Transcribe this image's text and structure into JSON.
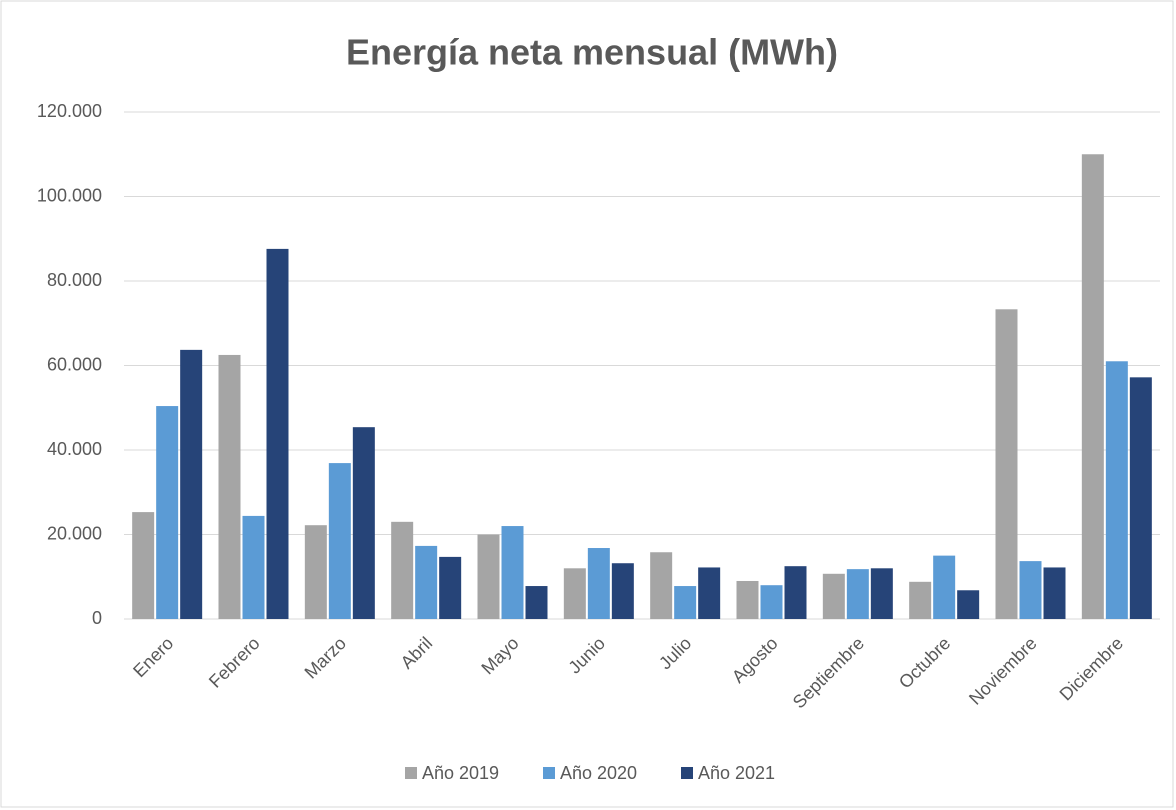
{
  "chart_data": {
    "type": "bar",
    "title": "Energía neta mensual (MWh)",
    "categories": [
      "Enero",
      "Febrero",
      "Marzo",
      "Abril",
      "Mayo",
      "Junio",
      "Julio",
      "Agosto",
      "Septiembre",
      "Octubre",
      "Noviembre",
      "Diciembre"
    ],
    "series": [
      {
        "name": "Año 2019",
        "color": "#a5a5a5",
        "values": [
          25300,
          62500,
          22200,
          23000,
          20000,
          12000,
          15800,
          9000,
          10700,
          8800,
          73300,
          110000
        ]
      },
      {
        "name": "Año 2020",
        "color": "#5b9bd5",
        "values": [
          50400,
          24400,
          36900,
          17300,
          22000,
          16800,
          7800,
          8000,
          11800,
          15000,
          13700,
          61000
        ]
      },
      {
        "name": "Año 2021",
        "color": "#264478",
        "values": [
          63700,
          87600,
          45400,
          14700,
          7800,
          13200,
          12200,
          12500,
          12000,
          6800,
          12200,
          57200
        ]
      }
    ],
    "ylim": [
      0,
      120000
    ],
    "yticks": [
      0,
      {
        "value": 20000,
        "label": "20.000"
      },
      {
        "value": 40000,
        "label": "40.000"
      },
      {
        "value": 60000,
        "label": "60.000"
      },
      {
        "value": 80000,
        "label": "80.000"
      },
      {
        "value": 100000,
        "label": "100.000"
      },
      {
        "value": 120000,
        "label": "120.000"
      }
    ],
    "grid": true,
    "legend": "bottom"
  }
}
